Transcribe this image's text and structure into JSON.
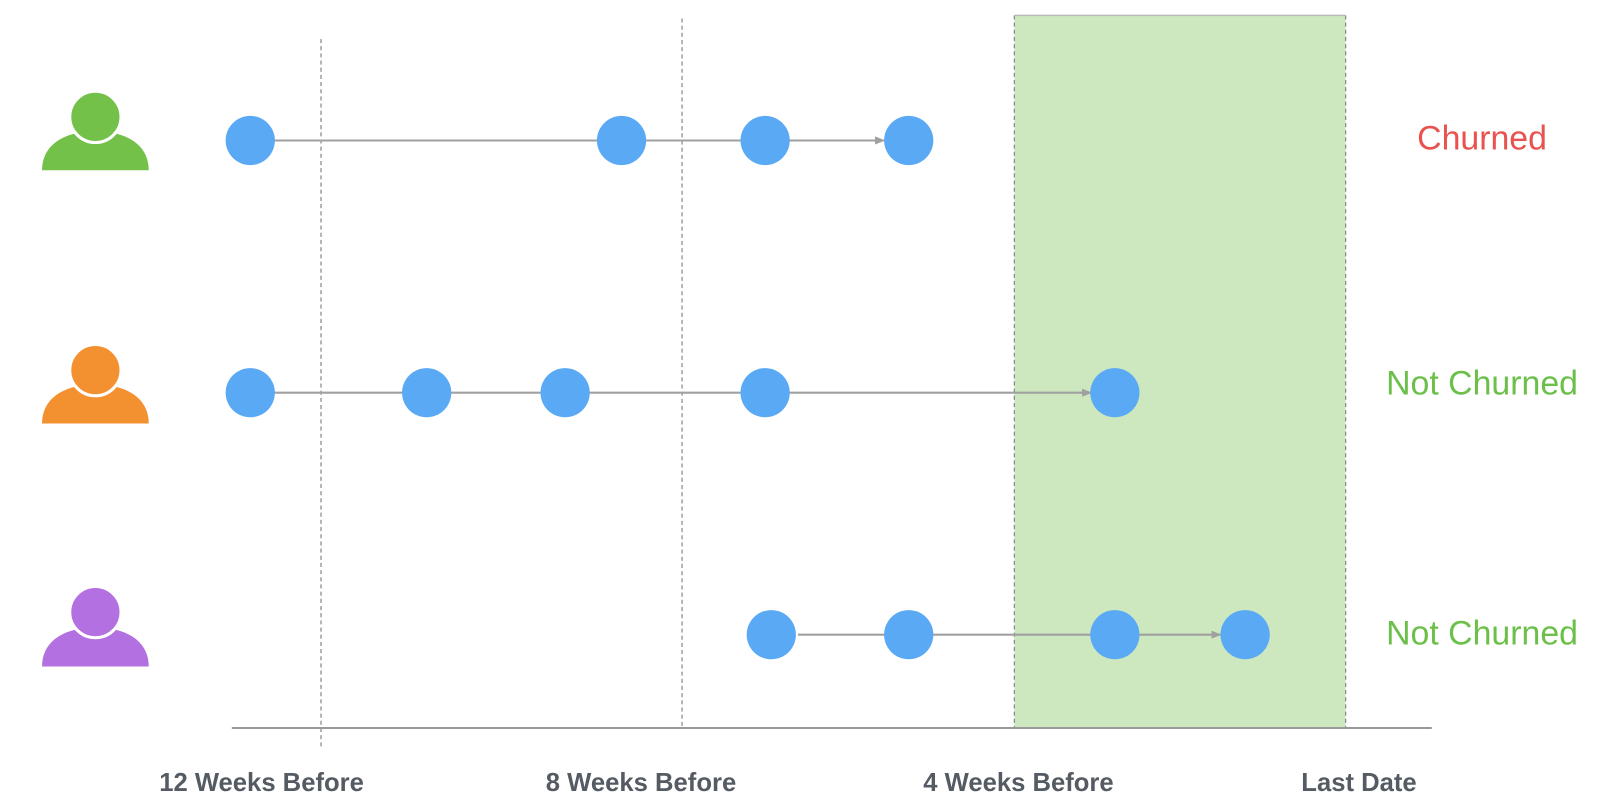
{
  "timeline": {
    "labels": [
      "12 Weeks Before",
      "8 Weeks Before",
      "4 Weeks Before",
      "Last Date"
    ]
  },
  "users": [
    {
      "status": "Churned"
    },
    {
      "status": "Not Churned"
    },
    {
      "status": "Not Churned"
    }
  ]
}
